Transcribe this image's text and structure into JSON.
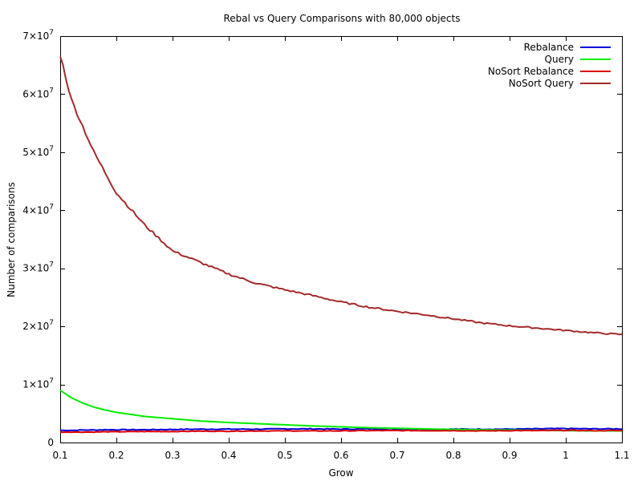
{
  "chart_data": {
    "type": "line",
    "title": "Rebal vs Query Comparisons with 80,000 objects",
    "xlabel": "Grow",
    "ylabel": "Number of comparisons",
    "xlim": [
      0.1,
      1.1
    ],
    "ylim": [
      0,
      70000000
    ],
    "x_ticks": [
      {
        "value": 0.1,
        "label": "0.1"
      },
      {
        "value": 0.2,
        "label": "0.2"
      },
      {
        "value": 0.3,
        "label": "0.3"
      },
      {
        "value": 0.4,
        "label": "0.4"
      },
      {
        "value": 0.5,
        "label": "0.5"
      },
      {
        "value": 0.6,
        "label": "0.6"
      },
      {
        "value": 0.7,
        "label": "0.7"
      },
      {
        "value": 0.8,
        "label": "0.8"
      },
      {
        "value": 0.9,
        "label": "0.9"
      },
      {
        "value": 1.0,
        "label": "1"
      },
      {
        "value": 1.1,
        "label": "1.1"
      }
    ],
    "y_ticks": [
      {
        "value": 0,
        "mantissa": "0",
        "exponent": ""
      },
      {
        "value": 10000000,
        "mantissa": "1×10",
        "exponent": "7"
      },
      {
        "value": 20000000,
        "mantissa": "2×10",
        "exponent": "7"
      },
      {
        "value": 30000000,
        "mantissa": "3×10",
        "exponent": "7"
      },
      {
        "value": 40000000,
        "mantissa": "4×10",
        "exponent": "7"
      },
      {
        "value": 50000000,
        "mantissa": "5×10",
        "exponent": "7"
      },
      {
        "value": 60000000,
        "mantissa": "6×10",
        "exponent": "7"
      },
      {
        "value": 70000000,
        "mantissa": "7×10",
        "exponent": "7"
      }
    ],
    "legend_position": "top-right",
    "grid": false,
    "x": [
      0.1,
      0.12,
      0.14,
      0.16,
      0.18,
      0.2,
      0.25,
      0.3,
      0.35,
      0.4,
      0.45,
      0.5,
      0.55,
      0.6,
      0.65,
      0.7,
      0.75,
      0.8,
      0.85,
      0.9,
      0.95,
      1.0,
      1.05,
      1.1
    ],
    "series": [
      {
        "name": "Rebalance",
        "color": "#0000dd",
        "values": [
          2100000,
          2100000,
          2150000,
          2150000,
          2200000,
          2200000,
          2200000,
          2250000,
          2300000,
          2300000,
          2300000,
          2350000,
          2350000,
          2300000,
          2350000,
          2350000,
          2300000,
          2300000,
          2300000,
          2300000,
          2350000,
          2400000,
          2350000,
          2350000
        ]
      },
      {
        "name": "Query",
        "color": "#00ee00",
        "values": [
          9000000,
          7700000,
          6800000,
          6100000,
          5600000,
          5200000,
          4500000,
          4100000,
          3700000,
          3450000,
          3250000,
          3050000,
          2850000,
          2700000,
          2550000,
          2450000,
          2350000,
          2250000,
          2200000,
          2150000,
          2100000,
          2050000,
          2000000,
          2000000
        ]
      },
      {
        "name": "NoSort Rebalance",
        "color": "#dd0000",
        "values": [
          1800000,
          1800000,
          1800000,
          1800000,
          1850000,
          1850000,
          1900000,
          1900000,
          1950000,
          1950000,
          2000000,
          2000000,
          2000000,
          2000000,
          2050000,
          2050000,
          2050000,
          2050000,
          2000000,
          2050000,
          2050000,
          2100000,
          2050000,
          2050000
        ]
      },
      {
        "name": "NoSort Query",
        "color": "#a52a2a",
        "values": [
          66800000,
          59000000,
          54500000,
          50000000,
          46500000,
          43000000,
          37500000,
          33000000,
          31000000,
          29000000,
          27400000,
          26300000,
          25300000,
          24200000,
          23300000,
          22600000,
          22000000,
          21300000,
          20600000,
          20100000,
          19700000,
          19300000,
          18900000,
          18600000
        ]
      }
    ]
  }
}
